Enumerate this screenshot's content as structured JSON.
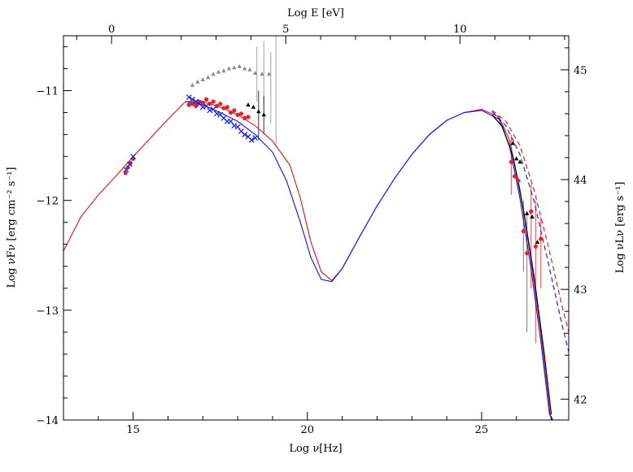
{
  "chart_data": {
    "type": "line",
    "title": "",
    "xlabel_bottom": "Log ν[Hz]",
    "xlabel_top": "Log E [eV]",
    "ylabel_left": "Log νFν  [erg cm⁻² s⁻¹]",
    "ylabel_right": "Log νLν [erg s⁻¹]",
    "xlim": [
      13,
      27.5
    ],
    "ylim": [
      -14,
      -10.5
    ],
    "x_top_lim": [
      -1.38,
      13.12
    ],
    "y_right_lim": [
      41.81,
      45.31
    ],
    "x_ticks": [
      {
        "v": 15,
        "label": "15"
      },
      {
        "v": 20,
        "label": "20"
      },
      {
        "v": 25,
        "label": "25"
      }
    ],
    "x_top_ticks": [
      {
        "v": 0,
        "label": "0"
      },
      {
        "v": 5,
        "label": "5"
      },
      {
        "v": 10,
        "label": "10"
      }
    ],
    "y_ticks": [
      {
        "v": -11,
        "label": "−11"
      },
      {
        "v": -12,
        "label": "−12"
      },
      {
        "v": -13,
        "label": "−13"
      },
      {
        "v": -14,
        "label": "−14"
      }
    ],
    "y_right_ticks": [
      {
        "v": 42,
        "label": "42"
      },
      {
        "v": 43,
        "label": "43"
      },
      {
        "v": 44,
        "label": "44"
      },
      {
        "v": 45,
        "label": "45"
      }
    ],
    "series": [
      {
        "kind": "line",
        "color": "#e8202a",
        "dashed": false,
        "points": [
          [
            13.0,
            -12.46
          ],
          [
            13.5,
            -12.15
          ],
          [
            14.0,
            -11.95
          ],
          [
            14.5,
            -11.78
          ],
          [
            15.0,
            -11.6
          ],
          [
            15.5,
            -11.43
          ],
          [
            16.0,
            -11.26
          ],
          [
            16.5,
            -11.1
          ],
          [
            17.0,
            -11.1
          ],
          [
            17.5,
            -11.15
          ],
          [
            18.0,
            -11.22
          ],
          [
            18.5,
            -11.32
          ],
          [
            19.0,
            -11.46
          ],
          [
            19.5,
            -11.68
          ],
          [
            19.8,
            -11.98
          ],
          [
            20.1,
            -12.38
          ],
          [
            20.4,
            -12.65
          ],
          [
            20.7,
            -12.73
          ],
          [
            21.0,
            -12.62
          ],
          [
            21.5,
            -12.33
          ],
          [
            22.0,
            -12.05
          ],
          [
            22.5,
            -11.8
          ],
          [
            23.0,
            -11.58
          ],
          [
            23.5,
            -11.4
          ],
          [
            24.0,
            -11.27
          ],
          [
            24.5,
            -11.2
          ],
          [
            25.0,
            -11.17
          ],
          [
            25.5,
            -11.24
          ],
          [
            25.8,
            -11.45
          ],
          [
            26.1,
            -11.9
          ],
          [
            26.4,
            -12.5
          ],
          [
            26.7,
            -13.2
          ],
          [
            26.95,
            -13.9
          ],
          [
            27.0,
            -14.0
          ]
        ]
      },
      {
        "kind": "line",
        "color": "#1a28e0",
        "dashed": false,
        "points": [
          [
            16.5,
            -11.1
          ],
          [
            17.0,
            -11.13
          ],
          [
            17.5,
            -11.2
          ],
          [
            18.0,
            -11.28
          ],
          [
            18.5,
            -11.4
          ],
          [
            19.0,
            -11.56
          ],
          [
            19.4,
            -11.82
          ],
          [
            19.8,
            -12.2
          ],
          [
            20.1,
            -12.52
          ],
          [
            20.4,
            -12.72
          ],
          [
            20.7,
            -12.74
          ],
          [
            21.0,
            -12.62
          ],
          [
            21.5,
            -12.33
          ],
          [
            22.0,
            -12.05
          ],
          [
            22.5,
            -11.8
          ],
          [
            23.0,
            -11.58
          ],
          [
            23.5,
            -11.4
          ],
          [
            24.0,
            -11.27
          ],
          [
            24.5,
            -11.2
          ],
          [
            25.0,
            -11.18
          ],
          [
            25.5,
            -11.26
          ],
          [
            25.8,
            -11.5
          ],
          [
            26.1,
            -11.98
          ],
          [
            26.4,
            -12.58
          ],
          [
            26.7,
            -13.28
          ],
          [
            26.95,
            -13.95
          ],
          [
            27.05,
            -14.0
          ]
        ]
      },
      {
        "kind": "line",
        "color": "#000000",
        "dashed": false,
        "points": [
          [
            25.3,
            -11.22
          ],
          [
            25.6,
            -11.33
          ],
          [
            25.9,
            -11.6
          ],
          [
            26.2,
            -12.08
          ],
          [
            26.5,
            -12.68
          ],
          [
            26.8,
            -13.4
          ],
          [
            27.0,
            -13.95
          ]
        ]
      },
      {
        "kind": "line",
        "color": "#e8202a",
        "dashed": true,
        "points": [
          [
            25.3,
            -11.18
          ],
          [
            25.7,
            -11.28
          ],
          [
            26.1,
            -11.5
          ],
          [
            26.5,
            -11.9
          ],
          [
            26.9,
            -12.4
          ],
          [
            27.3,
            -12.95
          ],
          [
            27.5,
            -13.2
          ]
        ]
      },
      {
        "kind": "line",
        "color": "#1a28e0",
        "dashed": true,
        "points": [
          [
            25.3,
            -11.19
          ],
          [
            25.7,
            -11.32
          ],
          [
            26.1,
            -11.58
          ],
          [
            26.5,
            -12.0
          ],
          [
            26.9,
            -12.55
          ],
          [
            27.3,
            -13.12
          ],
          [
            27.5,
            -13.38
          ]
        ]
      },
      {
        "kind": "scatter",
        "color": "#e8202a",
        "marker": "circle",
        "points": [
          [
            14.78,
            -11.75
          ],
          [
            14.85,
            -11.7
          ],
          [
            14.92,
            -11.66
          ],
          [
            15.0,
            -11.62
          ],
          [
            16.6,
            -11.13
          ],
          [
            16.7,
            -11.12
          ],
          [
            16.8,
            -11.14
          ],
          [
            16.9,
            -11.1
          ],
          [
            17.0,
            -11.11
          ],
          [
            17.1,
            -11.08
          ],
          [
            17.2,
            -11.12
          ],
          [
            17.3,
            -11.1
          ],
          [
            17.4,
            -11.14
          ],
          [
            17.5,
            -11.12
          ],
          [
            17.6,
            -11.16
          ],
          [
            17.7,
            -11.15
          ],
          [
            17.8,
            -11.2
          ],
          [
            17.9,
            -11.18
          ],
          [
            18.0,
            -11.22
          ],
          [
            18.1,
            -11.21
          ],
          [
            18.2,
            -11.25
          ],
          [
            18.3,
            -11.24
          ],
          [
            25.85,
            -11.65
          ],
          [
            25.95,
            -11.78
          ],
          [
            26.05,
            -11.82
          ],
          [
            26.2,
            -12.28
          ],
          [
            26.3,
            -12.48
          ],
          [
            26.42,
            -12.1
          ],
          [
            26.55,
            -12.42
          ],
          [
            26.7,
            -12.35
          ]
        ]
      },
      {
        "kind": "scatter",
        "color": "#1a28e0",
        "marker": "cross",
        "points": [
          [
            14.8,
            -11.72
          ],
          [
            14.9,
            -11.67
          ],
          [
            15.0,
            -11.6
          ],
          [
            16.6,
            -11.06
          ],
          [
            16.7,
            -11.08
          ],
          [
            16.8,
            -11.1
          ],
          [
            16.9,
            -11.12
          ],
          [
            17.0,
            -11.15
          ],
          [
            17.1,
            -11.14
          ],
          [
            17.2,
            -11.18
          ],
          [
            17.3,
            -11.17
          ],
          [
            17.4,
            -11.21
          ],
          [
            17.5,
            -11.22
          ],
          [
            17.6,
            -11.25
          ],
          [
            17.7,
            -11.28
          ],
          [
            17.8,
            -11.28
          ],
          [
            17.9,
            -11.32
          ],
          [
            18.0,
            -11.33
          ],
          [
            18.1,
            -11.37
          ],
          [
            18.2,
            -11.4
          ],
          [
            18.3,
            -11.42
          ],
          [
            18.4,
            -11.45
          ],
          [
            18.5,
            -11.43
          ]
        ]
      },
      {
        "kind": "scatter",
        "color": "#000000",
        "marker": "triangle",
        "points": [
          [
            18.3,
            -11.13
          ],
          [
            18.45,
            -11.15
          ],
          [
            18.6,
            -11.19
          ],
          [
            18.75,
            -11.22
          ],
          [
            25.9,
            -11.48
          ],
          [
            26.0,
            -11.62
          ],
          [
            26.1,
            -11.65
          ],
          [
            26.3,
            -12.12
          ],
          [
            26.45,
            -12.15
          ],
          [
            26.6,
            -12.38
          ]
        ]
      },
      {
        "kind": "scatter",
        "color": "#8c8c8c",
        "marker": "triangle",
        "points": [
          [
            16.7,
            -10.95
          ],
          [
            16.85,
            -10.92
          ],
          [
            17.0,
            -10.9
          ],
          [
            17.15,
            -10.88
          ],
          [
            17.3,
            -10.85
          ],
          [
            17.45,
            -10.83
          ],
          [
            17.6,
            -10.82
          ],
          [
            17.75,
            -10.8
          ],
          [
            17.9,
            -10.79
          ],
          [
            18.05,
            -10.78
          ],
          [
            18.2,
            -10.8
          ],
          [
            18.35,
            -10.81
          ],
          [
            18.5,
            -10.84
          ],
          [
            18.7,
            -10.85
          ],
          [
            18.9,
            -10.85
          ]
        ]
      }
    ],
    "error_bars": [
      {
        "color": "#8c8c8c",
        "x": 18.55,
        "low": -11.1,
        "high": -10.6
      },
      {
        "color": "#8c8c8c",
        "x": 18.75,
        "low": -11.15,
        "high": -10.55
      },
      {
        "color": "#8c8c8c",
        "x": 18.95,
        "low": -11.3,
        "high": -10.65
      },
      {
        "color": "#8c8c8c",
        "x": 19.1,
        "low": -11.5,
        "high": -10.5
      },
      {
        "color": "#000000",
        "x": 18.6,
        "low": -11.45,
        "high": -11.0
      },
      {
        "color": "#000000",
        "x": 18.75,
        "low": -11.4,
        "high": -11.05
      },
      {
        "color": "#e8202a",
        "x": 25.85,
        "low": -11.95,
        "high": -11.4
      },
      {
        "color": "#e8202a",
        "x": 26.2,
        "low": -12.65,
        "high": -12.0
      },
      {
        "color": "#e8202a",
        "x": 26.3,
        "low": -13.2,
        "high": -12.1
      },
      {
        "color": "#e8202a",
        "x": 26.42,
        "low": -12.8,
        "high": -11.85
      },
      {
        "color": "#e8202a",
        "x": 26.55,
        "low": -13.3,
        "high": -12.0
      },
      {
        "color": "#e8202a",
        "x": 26.7,
        "low": -12.8,
        "high": -12.15
      }
    ]
  }
}
